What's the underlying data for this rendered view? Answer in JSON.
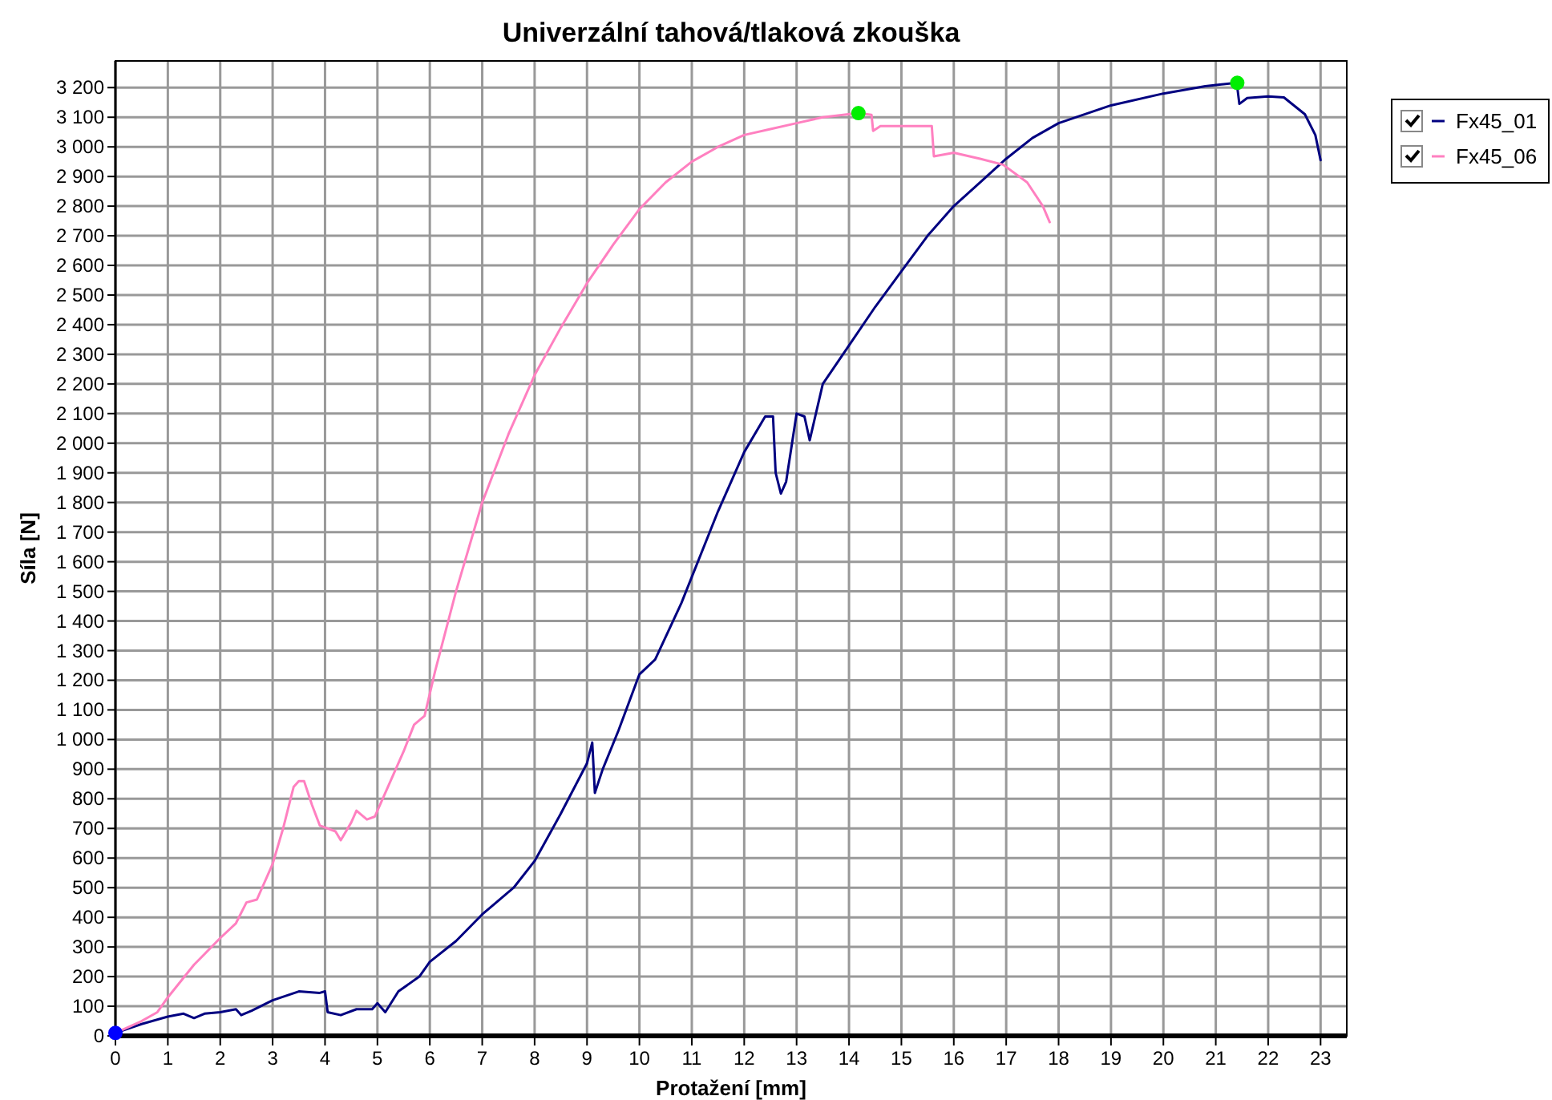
{
  "chart_data": {
    "type": "line",
    "title": "Univerzální tahová/tlaková zkouška",
    "xlabel": "Protažení [mm]",
    "ylabel": "Síla [N]",
    "xlim": [
      0,
      23.5
    ],
    "ylim": [
      0,
      3290
    ],
    "xticks": [
      0,
      1,
      2,
      3,
      4,
      5,
      6,
      7,
      8,
      9,
      10,
      11,
      12,
      13,
      14,
      15,
      16,
      17,
      18,
      19,
      20,
      21,
      22,
      23
    ],
    "yticks": [
      0,
      100,
      200,
      300,
      400,
      500,
      600,
      700,
      800,
      900,
      {
        "value": 1000,
        "label": "1 000"
      },
      {
        "value": 1100,
        "label": "1 100"
      },
      {
        "value": 1200,
        "label": "1 200"
      },
      {
        "value": 1300,
        "label": "1 300"
      },
      {
        "value": 1400,
        "label": "1 400"
      },
      {
        "value": 1500,
        "label": "1 500"
      },
      {
        "value": 1600,
        "label": "1 600"
      },
      {
        "value": 1700,
        "label": "1 700"
      },
      {
        "value": 1800,
        "label": "1 800"
      },
      {
        "value": 1900,
        "label": "1 900"
      },
      {
        "value": 2000,
        "label": "2 000"
      },
      {
        "value": 2100,
        "label": "2 100"
      },
      {
        "value": 2200,
        "label": "2 200"
      },
      {
        "value": 2300,
        "label": "2 300"
      },
      {
        "value": 2400,
        "label": "2 400"
      },
      {
        "value": 2500,
        "label": "2 500"
      },
      {
        "value": 2600,
        "label": "2 600"
      },
      {
        "value": 2700,
        "label": "2 700"
      },
      {
        "value": 2800,
        "label": "2 800"
      },
      {
        "value": 2900,
        "label": "2 900"
      },
      {
        "value": 3000,
        "label": "3 000"
      },
      {
        "value": 3100,
        "label": "3 100"
      },
      {
        "value": 3200,
        "label": "3 200"
      }
    ],
    "grid": true,
    "legend": "top right",
    "marker": "none",
    "line_style": "solid",
    "series": [
      {
        "name": "Fx45_01",
        "color": "#000080",
        "x": [
          0,
          0.5,
          1,
          1.3,
          1.5,
          1.7,
          2,
          2.3,
          2.4,
          2.6,
          3,
          3.5,
          3.9,
          4.0,
          4.05,
          4.3,
          4.6,
          4.9,
          5.0,
          5.15,
          5.4,
          5.8,
          6,
          6.5,
          7,
          7.2,
          7.6,
          8,
          8.5,
          9.0,
          9.1,
          9.15,
          9.3,
          9.6,
          10,
          10.3,
          10.8,
          11.5,
          12,
          12.4,
          12.55,
          12.6,
          12.7,
          12.8,
          13.0,
          13.15,
          13.25,
          13.5,
          14,
          14.5,
          15,
          15.5,
          16,
          16.5,
          17,
          17.5,
          18,
          19,
          20,
          20.8,
          21.4,
          21.45,
          21.6,
          22.0,
          22.3,
          22.7,
          22.9,
          23.0
        ],
        "values": [
          10,
          40,
          65,
          75,
          60,
          75,
          80,
          90,
          70,
          85,
          120,
          150,
          145,
          150,
          80,
          70,
          90,
          90,
          110,
          80,
          150,
          200,
          250,
          320,
          410,
          440,
          500,
          590,
          750,
          920,
          990,
          820,
          900,
          1030,
          1220,
          1270,
          1460,
          1770,
          1970,
          2090,
          2090,
          1900,
          1830,
          1870,
          2100,
          2090,
          2010,
          2200,
          2330,
          2460,
          2580,
          2700,
          2800,
          2880,
          2960,
          3030,
          3080,
          3140,
          3180,
          3205,
          3216,
          3145,
          3165,
          3170,
          3167,
          3110,
          3040,
          2955
        ]
      },
      {
        "name": "Fx45_06",
        "color": "#ff80c0",
        "x": [
          0,
          0.5,
          0.8,
          1,
          1.5,
          2,
          2.3,
          2.5,
          2.7,
          3,
          3.2,
          3.4,
          3.5,
          3.6,
          3.75,
          3.9,
          4.2,
          4.3,
          4.5,
          4.6,
          4.8,
          4.95,
          5.1,
          5.5,
          5.7,
          5.9,
          6.1,
          6.5,
          7,
          7.5,
          8,
          8.5,
          9,
          9.5,
          10,
          10.5,
          11,
          11.5,
          12,
          12.5,
          13,
          13.5,
          14.18,
          14.43,
          14.46,
          14.6,
          15.0,
          15.58,
          15.62,
          16,
          16.5,
          16.94,
          17.4,
          17.7,
          17.83
        ],
        "values": [
          10,
          50,
          80,
          130,
          240,
          330,
          380,
          450,
          460,
          580,
          700,
          840,
          860,
          860,
          780,
          710,
          690,
          660,
          720,
          760,
          730,
          740,
          800,
          960,
          1050,
          1080,
          1230,
          1500,
          1800,
          2030,
          2230,
          2390,
          2540,
          2670,
          2790,
          2880,
          2950,
          3000,
          3040,
          3060,
          3080,
          3100,
          3114,
          3108,
          3054,
          3070,
          3070,
          3070,
          2968,
          2980,
          2960,
          2940,
          2880,
          2800,
          2746
        ]
      },
      {
        "type": "scatter",
        "marker": "circle",
        "color": "#00ee00",
        "x": [
          14.18,
          21.41
        ],
        "values": [
          3114,
          3216
        ]
      },
      {
        "type": "scatter",
        "marker": "circle",
        "color": "#0000ff",
        "x": [
          0
        ],
        "values": [
          10
        ]
      }
    ]
  }
}
